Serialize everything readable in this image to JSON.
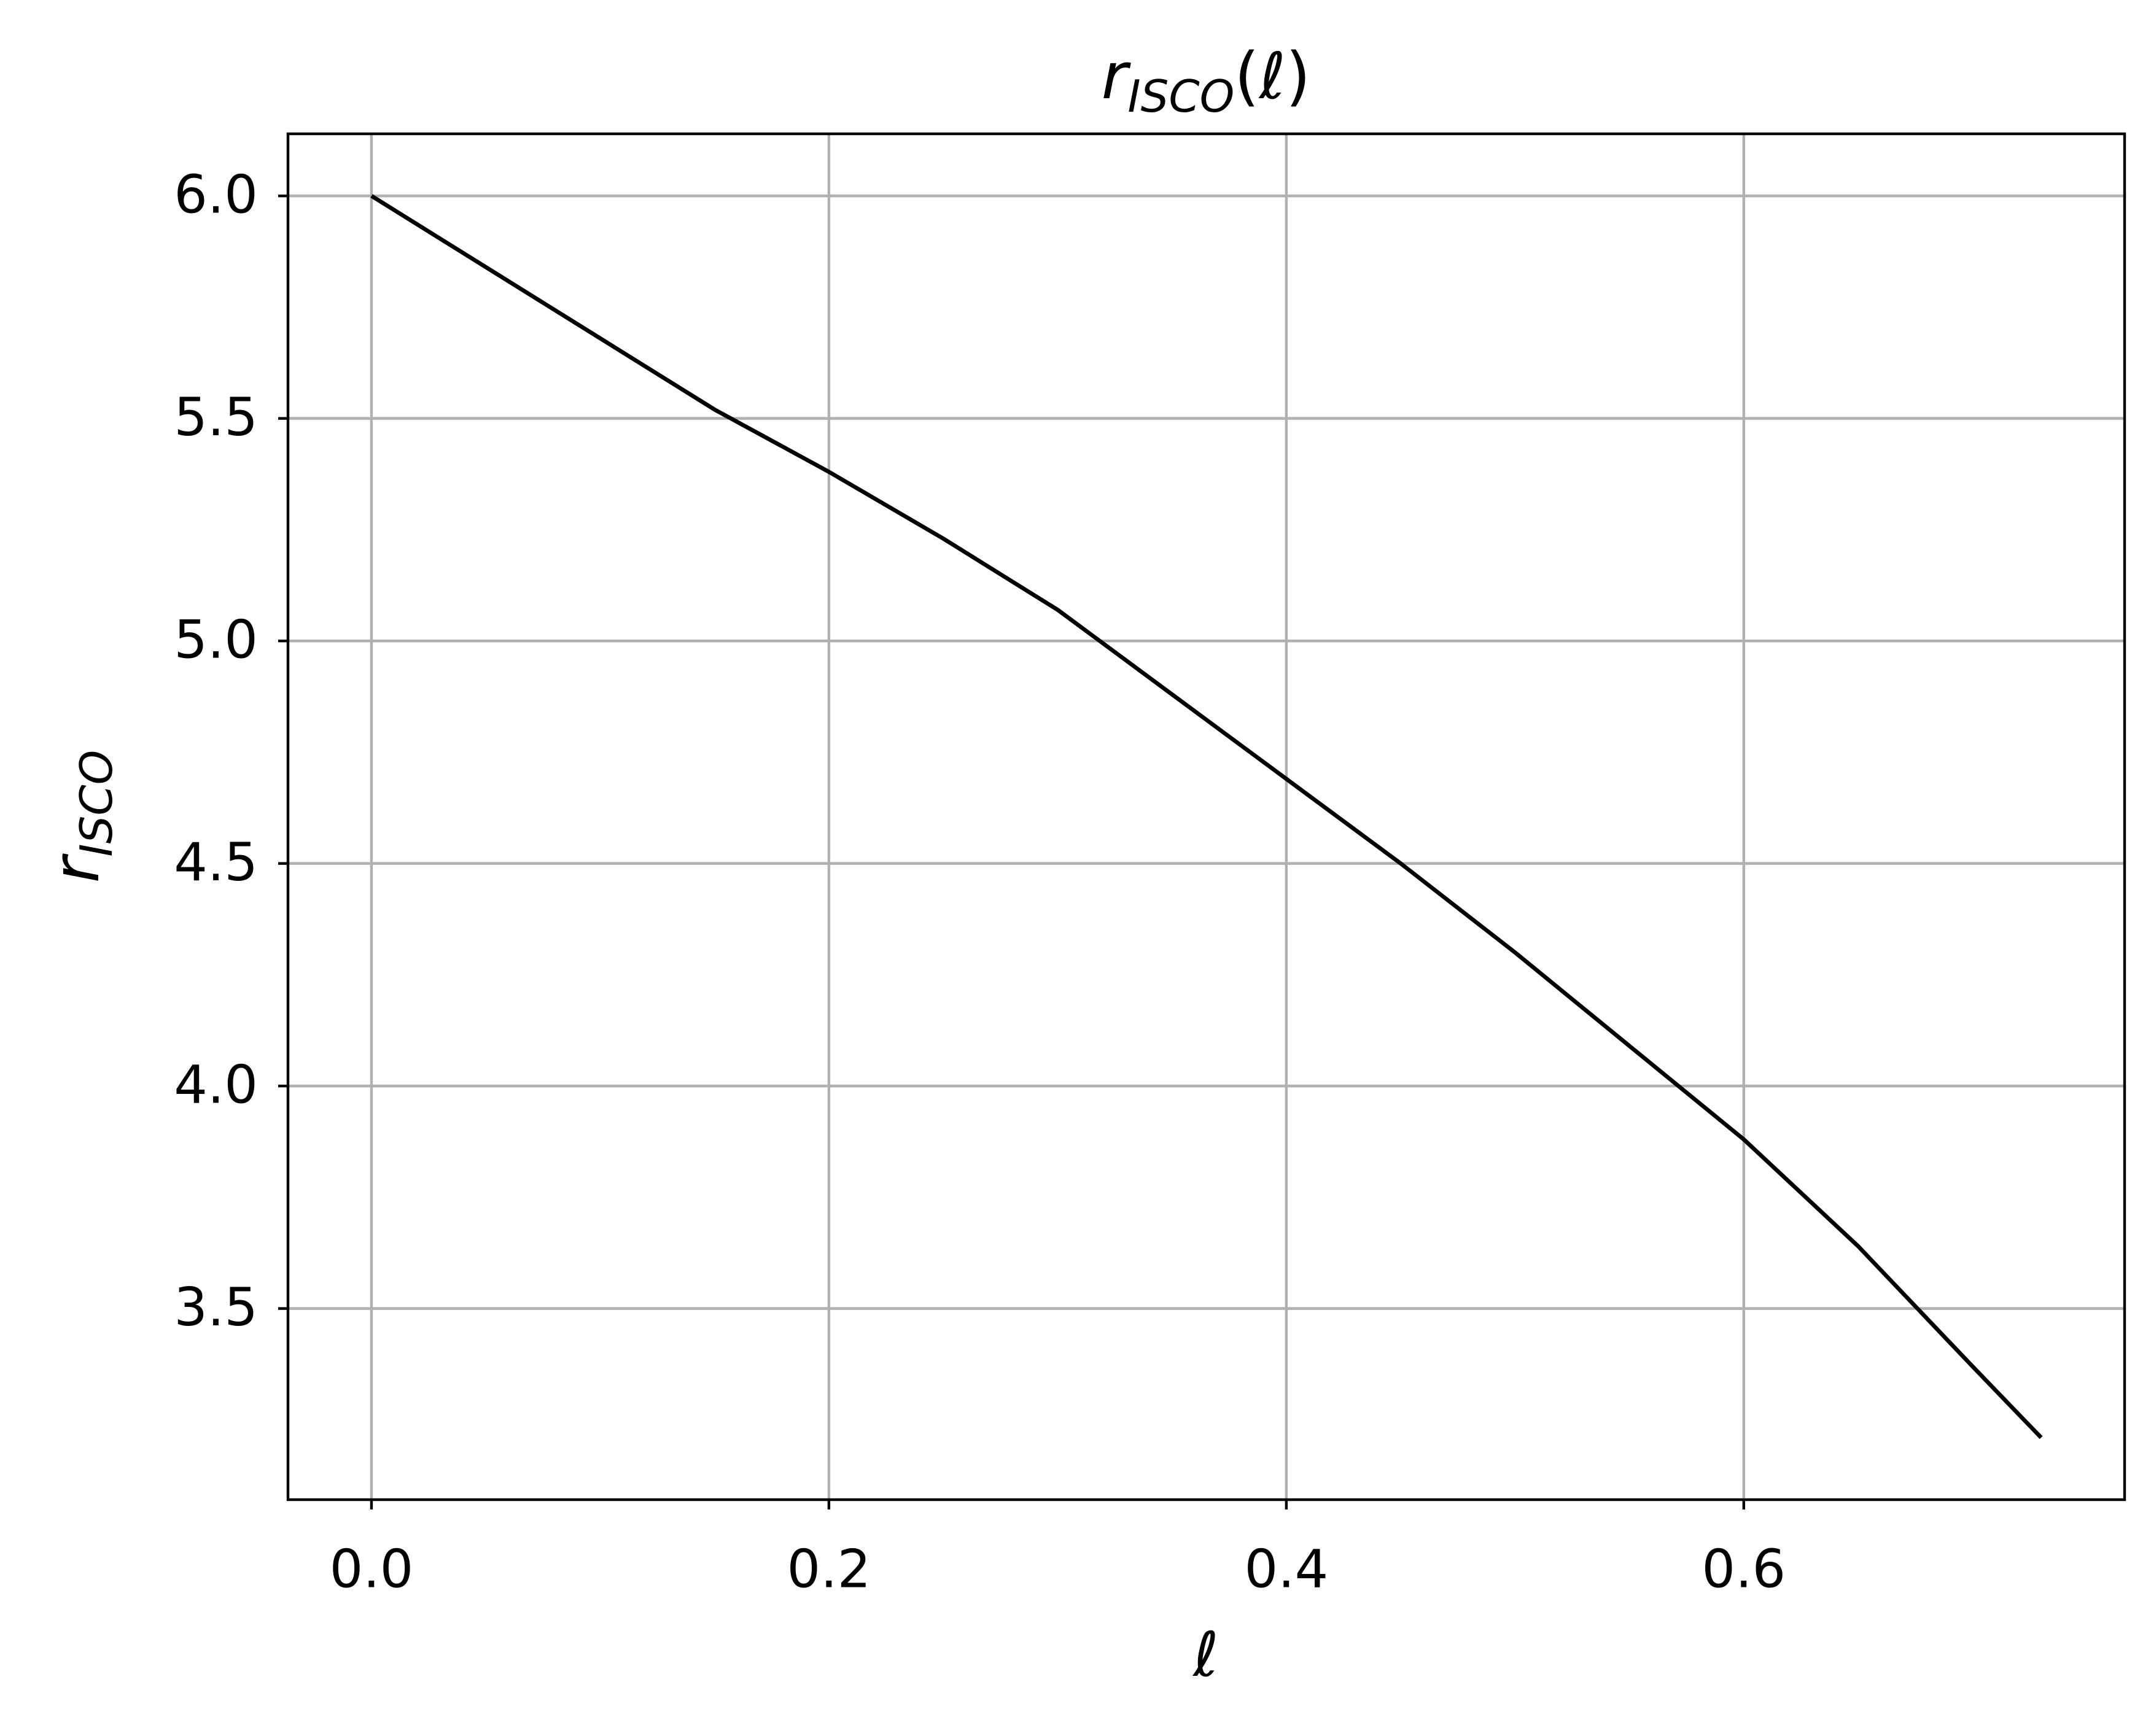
{
  "chart_data": {
    "type": "line",
    "title": {
      "base": "r",
      "sub": "ISCO",
      "rest": "(ℓ)"
    },
    "xlabel": "ℓ",
    "ylabel": {
      "base": "r",
      "sub": "ISCO"
    },
    "x": [
      0,
      0.05,
      0.1,
      0.15,
      0.2,
      0.25,
      0.3,
      0.35,
      0.4,
      0.45,
      0.5,
      0.55,
      0.6,
      0.65,
      0.7,
      0.73
    ],
    "y": [
      6.0,
      5.84,
      5.68,
      5.52,
      5.38,
      5.23,
      5.07,
      4.88,
      4.69,
      4.5,
      4.3,
      4.09,
      3.88,
      3.64,
      3.37,
      3.21
    ],
    "color": "#000000",
    "xlim": [
      -0.0365,
      0.7665
    ],
    "ylim": [
      3.0705,
      6.1395
    ],
    "xticks": [
      {
        "value": 0,
        "label": "0.0"
      },
      0.2,
      0.4,
      0.6
    ],
    "yticks": [
      {
        "value": 3.5,
        "label": "3.5"
      },
      {
        "value": 4,
        "label": "4.0"
      },
      {
        "value": 4.5,
        "label": "4.5"
      },
      {
        "value": 5,
        "label": "5.0"
      },
      {
        "value": 5.5,
        "label": "5.5"
      },
      {
        "value": 6,
        "label": "6.0"
      }
    ],
    "grid": true
  }
}
